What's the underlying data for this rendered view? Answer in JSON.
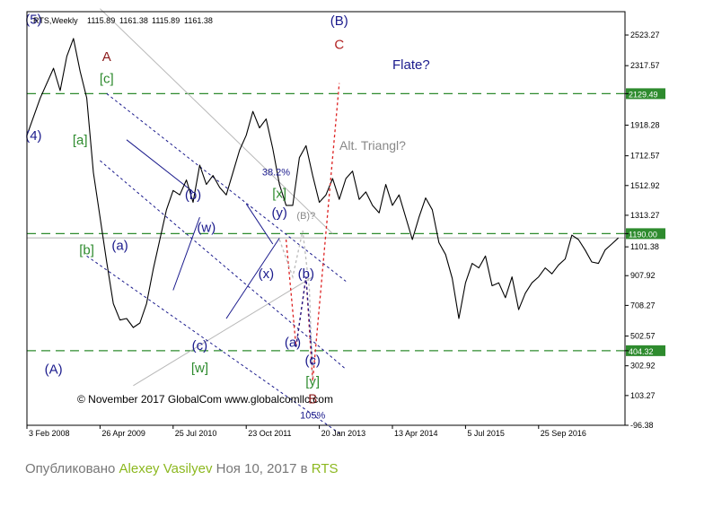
{
  "chart_data": {
    "type": "line",
    "title": "RTS,Weekly",
    "ohlc": [
      "1115.89",
      "1161.38",
      "1115.89",
      "1161.38"
    ],
    "x_ticks": [
      "3 Feb 2008",
      "26 Apr 2009",
      "25 Jul 2010",
      "23 Oct 2011",
      "20 Jan 2013",
      "13 Apr 2014",
      "5 Jul 2015",
      "25 Sep 2016"
    ],
    "y_ticks": [
      "2523.27",
      "2317.57",
      "2129.49",
      "1918.28",
      "1712.57",
      "1512.92",
      "1313.27",
      "1190.00",
      "1101.38",
      "907.92",
      "708.27",
      "502.57",
      "404.32",
      "302.92",
      "103.27",
      "-96.38"
    ],
    "highlighted_levels": [
      "2129.49",
      "1190.00",
      "404.32"
    ],
    "ylim": [
      -96.38,
      2680
    ],
    "series": [
      {
        "values": [
          [
            0,
            1850
          ],
          [
            4,
            2100
          ],
          [
            8,
            2300
          ],
          [
            10,
            2150
          ],
          [
            12,
            2380
          ],
          [
            14,
            2500
          ],
          [
            16,
            2280
          ],
          [
            18,
            2100
          ],
          [
            20,
            1600
          ],
          [
            22,
            1300
          ],
          [
            24,
            1000
          ],
          [
            26,
            720
          ],
          [
            28,
            610
          ],
          [
            30,
            620
          ],
          [
            32,
            560
          ],
          [
            34,
            590
          ],
          [
            36,
            720
          ],
          [
            38,
            950
          ],
          [
            40,
            1150
          ],
          [
            42,
            1350
          ],
          [
            44,
            1480
          ],
          [
            46,
            1450
          ],
          [
            48,
            1550
          ],
          [
            50,
            1400
          ],
          [
            52,
            1650
          ],
          [
            54,
            1520
          ],
          [
            56,
            1580
          ],
          [
            58,
            1500
          ],
          [
            60,
            1450
          ],
          [
            62,
            1600
          ],
          [
            64,
            1750
          ],
          [
            66,
            1850
          ],
          [
            68,
            2010
          ],
          [
            70,
            1900
          ],
          [
            72,
            1960
          ],
          [
            74,
            1760
          ],
          [
            76,
            1520
          ],
          [
            78,
            1380
          ],
          [
            80,
            1380
          ],
          [
            82,
            1700
          ],
          [
            84,
            1780
          ],
          [
            86,
            1580
          ],
          [
            88,
            1400
          ],
          [
            90,
            1450
          ],
          [
            92,
            1560
          ],
          [
            94,
            1420
          ],
          [
            96,
            1560
          ],
          [
            98,
            1610
          ],
          [
            100,
            1420
          ],
          [
            102,
            1470
          ],
          [
            104,
            1380
          ],
          [
            106,
            1330
          ],
          [
            108,
            1520
          ],
          [
            110,
            1380
          ],
          [
            112,
            1450
          ],
          [
            114,
            1300
          ],
          [
            116,
            1150
          ],
          [
            118,
            1300
          ],
          [
            120,
            1430
          ],
          [
            122,
            1350
          ],
          [
            124,
            1130
          ],
          [
            126,
            1050
          ],
          [
            128,
            890
          ],
          [
            130,
            620
          ],
          [
            132,
            860
          ],
          [
            134,
            990
          ],
          [
            136,
            960
          ],
          [
            138,
            1040
          ],
          [
            140,
            840
          ],
          [
            142,
            860
          ],
          [
            144,
            760
          ],
          [
            146,
            900
          ],
          [
            148,
            680
          ],
          [
            150,
            790
          ],
          [
            152,
            860
          ],
          [
            154,
            900
          ],
          [
            156,
            960
          ],
          [
            158,
            920
          ],
          [
            160,
            980
          ],
          [
            162,
            1020
          ],
          [
            164,
            1180
          ],
          [
            166,
            1150
          ],
          [
            168,
            1080
          ],
          [
            170,
            1000
          ],
          [
            172,
            990
          ],
          [
            174,
            1080
          ],
          [
            176,
            1120
          ],
          [
            178,
            1161
          ]
        ]
      }
    ],
    "wave_labels": [
      {
        "text": "(5)",
        "color": "#1a1a8c",
        "x": 2,
        "y": 2600
      },
      {
        "text": "(4)",
        "color": "#1a1a8c",
        "x": 2,
        "y": 1820
      },
      {
        "text": "(A)",
        "color": "#1a1a8c",
        "x": 8,
        "y": 250
      },
      {
        "text": "A",
        "color": "#8b1a1a",
        "x": 24,
        "y": 2350
      },
      {
        "text": "[c]",
        "color": "#2e8b2e",
        "x": 24,
        "y": 2200
      },
      {
        "text": "[a]",
        "color": "#2e8b2e",
        "x": 16,
        "y": 1790
      },
      {
        "text": "[b]",
        "color": "#2e8b2e",
        "x": 18,
        "y": 1050
      },
      {
        "text": "(a)",
        "color": "#1a1a8c",
        "x": 28,
        "y": 1080
      },
      {
        "text": "(b)",
        "color": "#1a1a8c",
        "x": 50,
        "y": 1420
      },
      {
        "text": "(w)",
        "color": "#1a1a8c",
        "x": 54,
        "y": 1200
      },
      {
        "text": "(c)",
        "color": "#1a1a8c",
        "x": 52,
        "y": 410
      },
      {
        "text": "[w]",
        "color": "#2e8b2e",
        "x": 52,
        "y": 260
      },
      {
        "text": "(x)",
        "color": "#1a1a8c",
        "x": 72,
        "y": 890
      },
      {
        "text": "38.2%",
        "color": "#1a1a8c",
        "x": 75,
        "y": 1580
      },
      {
        "text": "[x]",
        "color": "#2e8b2e",
        "x": 76,
        "y": 1430
      },
      {
        "text": "(y)",
        "color": "#1a1a8c",
        "x": 76,
        "y": 1300
      },
      {
        "text": "(B)?",
        "color": "#888888",
        "x": 84,
        "y": 1290
      },
      {
        "text": "(b)",
        "color": "#1a1a8c",
        "x": 84,
        "y": 890
      },
      {
        "text": "(a)",
        "color": "#1a1a8c",
        "x": 80,
        "y": 430
      },
      {
        "text": "(c)",
        "color": "#1a1a8c",
        "x": 86,
        "y": 310
      },
      {
        "text": "[y]",
        "color": "#2e8b2e",
        "x": 86,
        "y": 170
      },
      {
        "text": "B",
        "color": "#8b1a1a",
        "x": 86,
        "y": 50
      },
      {
        "text": "105%",
        "color": "#1a1a8c",
        "x": 86,
        "y": -50
      },
      {
        "text": "(B)",
        "color": "#1a1a8c",
        "x": 94,
        "y": 2590
      },
      {
        "text": "C",
        "color": "#b22222",
        "x": 94,
        "y": 2430
      }
    ],
    "annotations": [
      "Flate?",
      "Alt. Triangl?",
      "© November 2017 GlobalCom www.globalcomllc.com"
    ]
  },
  "footer": {
    "prefix": "Опубликовано ",
    "author": "Alexey Vasilyev",
    "date_text": " Ноя 10, 2017 в ",
    "ticker": "RTS"
  },
  "colors": {
    "wave_blue": "#1a1a8c",
    "wave_green": "#2e8b2e",
    "wave_red": "#8b1a1a",
    "level_line": "#2e8b2e",
    "projection": "#dd2222",
    "footer_link": "#8cb81f"
  }
}
